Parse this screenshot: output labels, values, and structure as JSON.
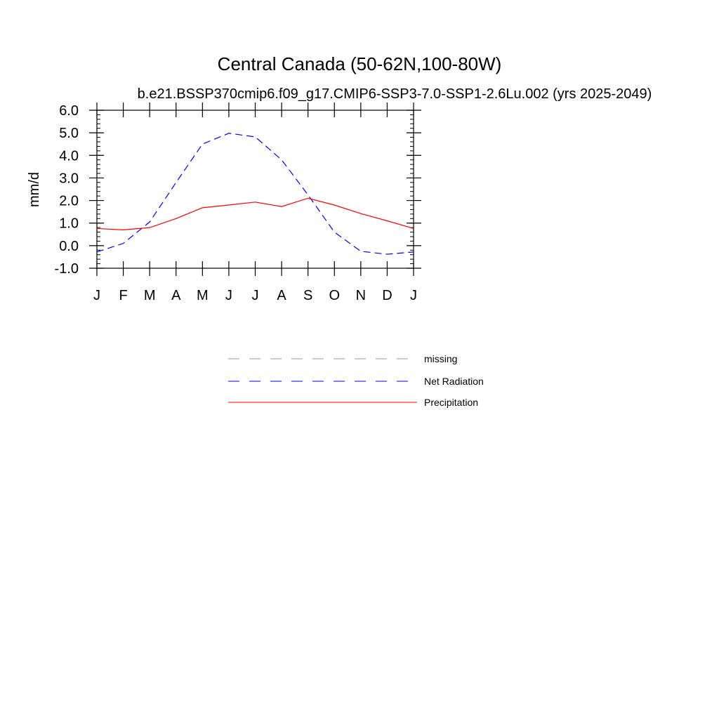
{
  "chart_data": {
    "type": "line",
    "title": "Central Canada (50-62N,100-80W)",
    "subtitle": "b.e21.BSSP370cmip6.f09_g17.CMIP6-SSP3-7.0-SSP1-2.6Lu.002 (yrs 2025-2049)",
    "xlabel": "",
    "ylabel": "mm/d",
    "ylim": [
      -1.0,
      6.0
    ],
    "yticks": [
      "-1.0",
      "0.0",
      "1.0",
      "2.0",
      "3.0",
      "4.0",
      "5.0",
      "6.0"
    ],
    "categories": [
      "J",
      "F",
      "M",
      "A",
      "M",
      "J",
      "J",
      "A",
      "S",
      "O",
      "N",
      "D",
      "J"
    ],
    "grid": false,
    "legend_position": "below-center",
    "series": [
      {
        "name": "Net Radiation",
        "color": "#0000ff",
        "dash": "dashed",
        "values": [
          -0.28,
          0.1,
          1.05,
          2.8,
          4.5,
          4.98,
          4.82,
          3.8,
          2.25,
          0.6,
          -0.25,
          -0.38,
          -0.28
        ]
      },
      {
        "name": "Precipitation",
        "color": "#ff0000",
        "dash": "solid",
        "values": [
          0.76,
          0.7,
          0.8,
          1.2,
          1.68,
          1.8,
          1.93,
          1.73,
          2.1,
          1.8,
          1.42,
          1.1,
          0.76
        ]
      }
    ],
    "legend": [
      {
        "label": "missing",
        "color": "#999999",
        "dash": "dashed"
      },
      {
        "label": "Net Radiation",
        "color": "#0000ff",
        "dash": "dashed"
      },
      {
        "label": "Precipitation",
        "color": "#ff0000",
        "dash": "solid"
      }
    ]
  }
}
